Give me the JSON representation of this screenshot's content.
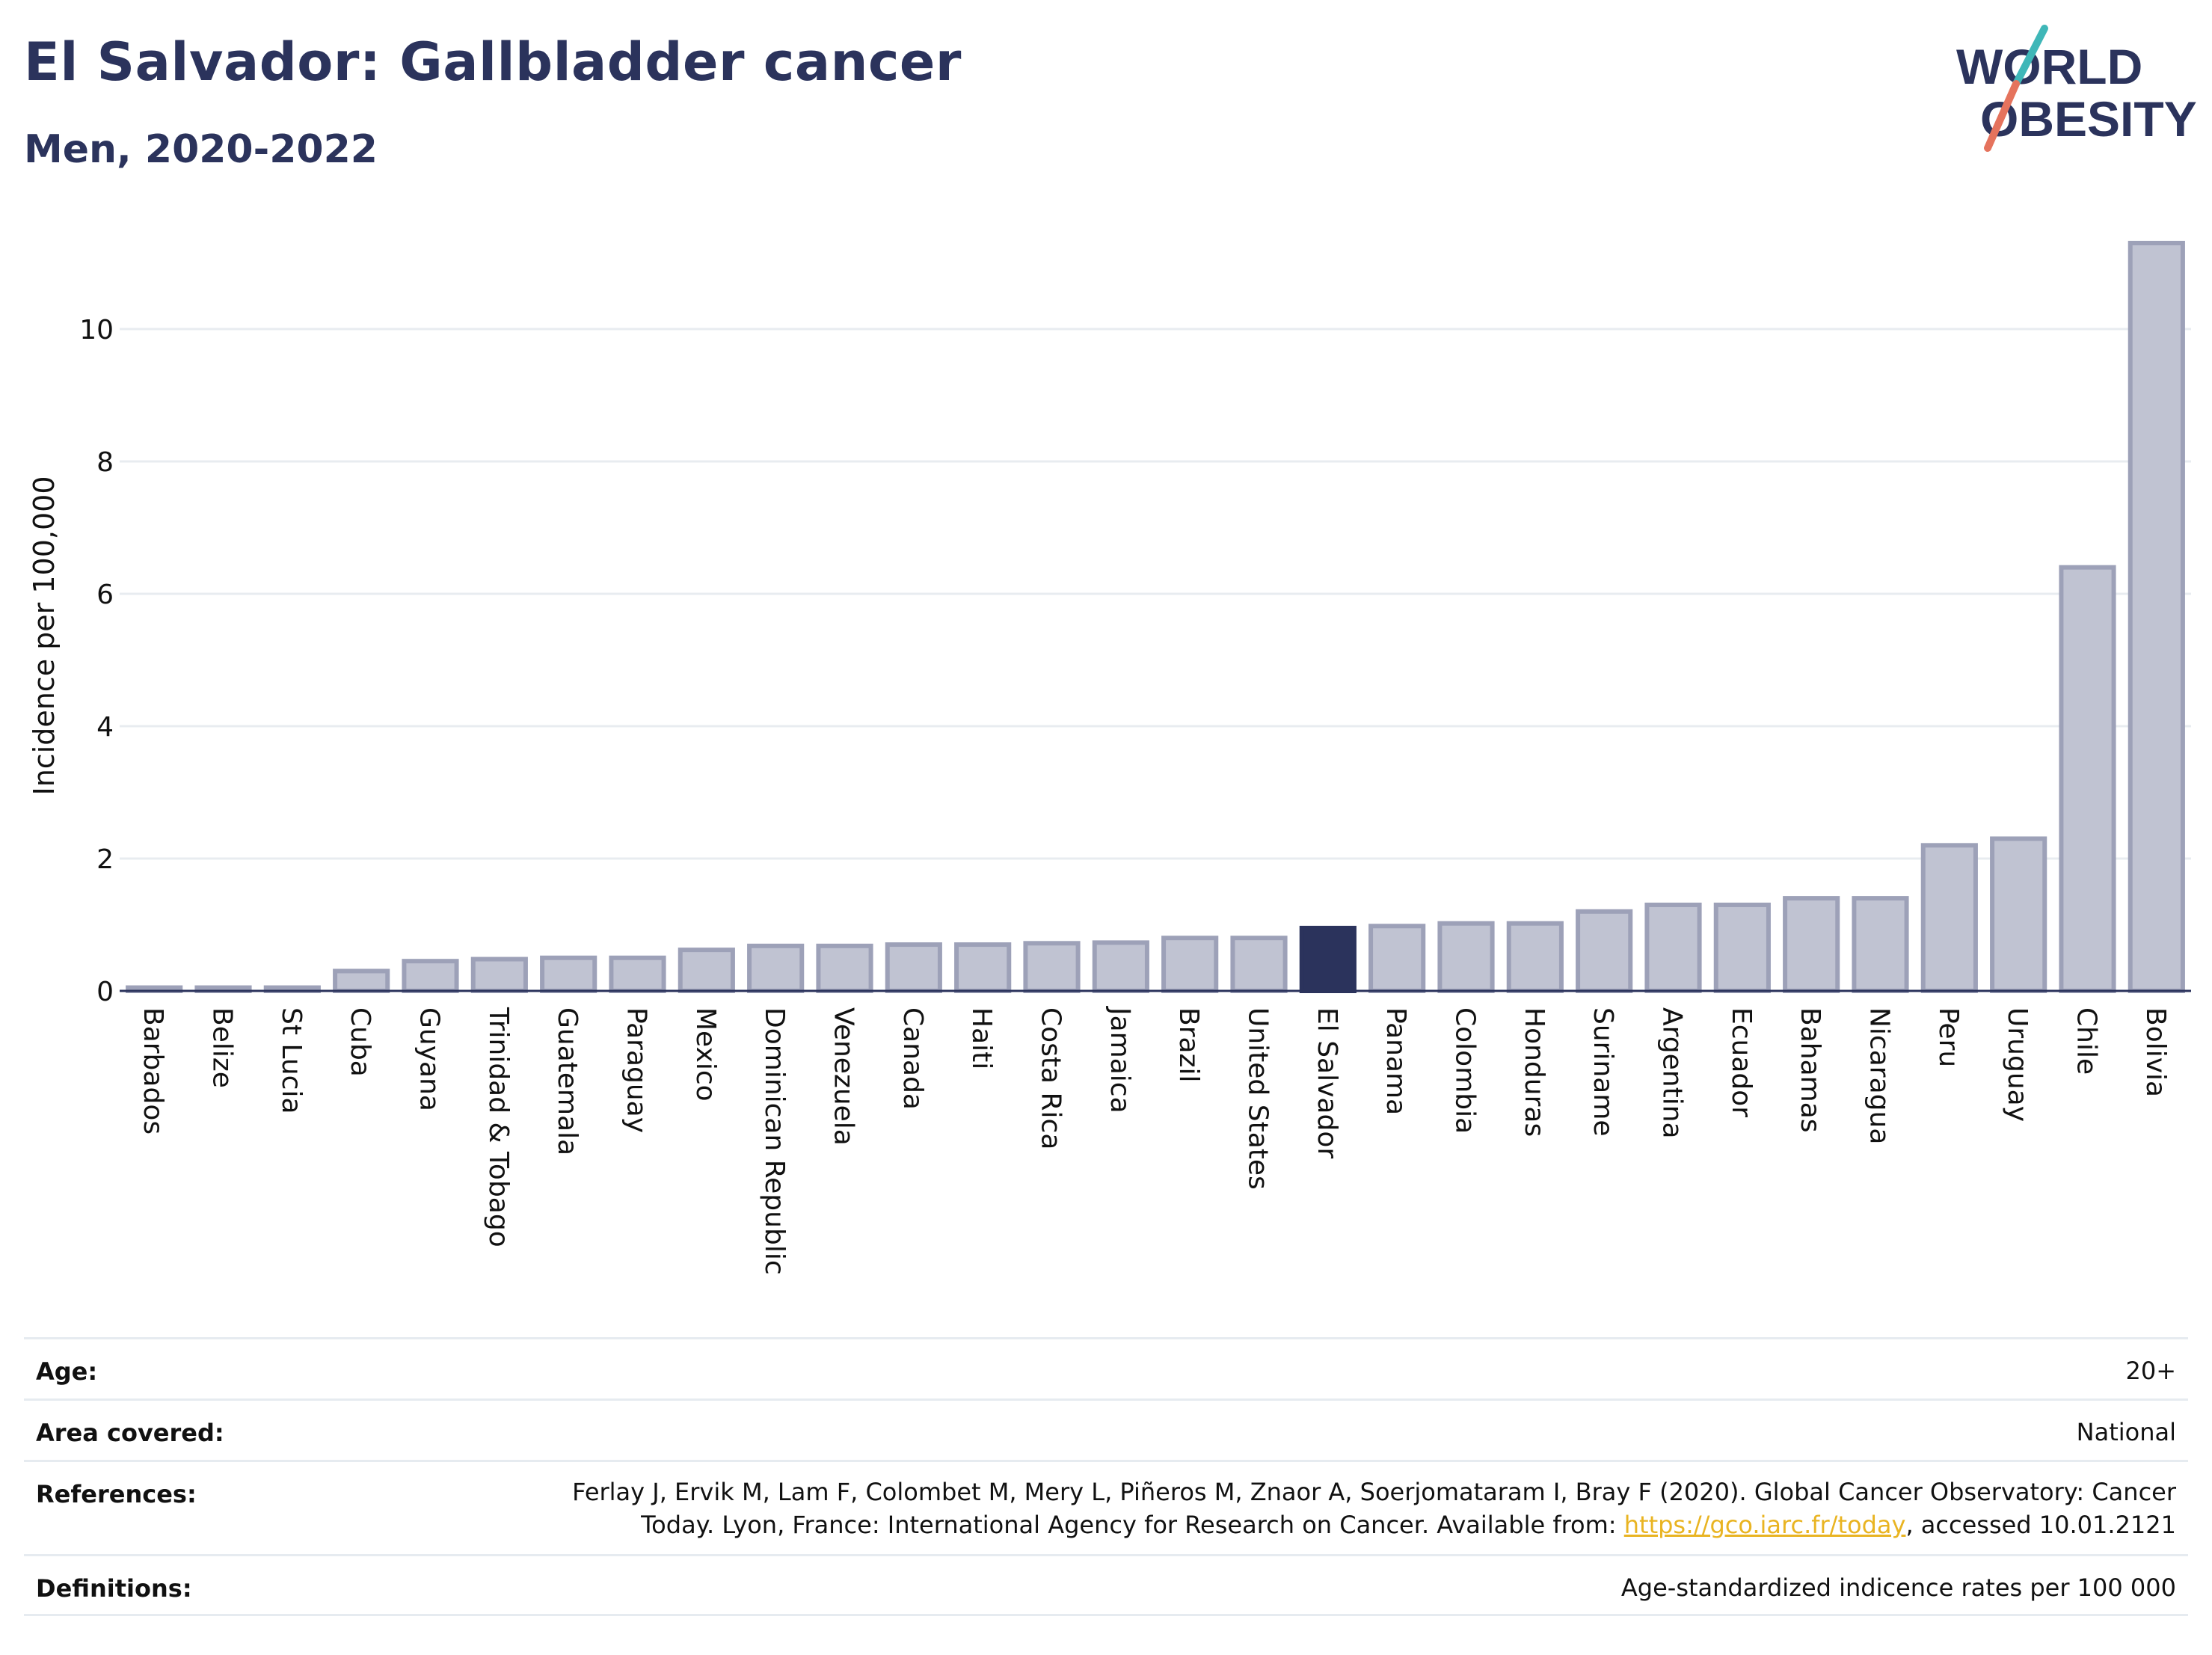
{
  "header": {
    "title": "El Salvador: Gallbladder cancer",
    "subtitle": "Men, 2020-2022"
  },
  "logo": {
    "line1": "WORLD",
    "line2": "OBESITY"
  },
  "colors": {
    "highlight": "#2b335c",
    "bar": "#c0c3d2",
    "bar_edge": "#9da1b8",
    "accent_teal": "#3fb7b8",
    "accent_coral": "#e5735d",
    "link": "#e9b422"
  },
  "chart_data": {
    "type": "bar",
    "title": "El Salvador: Gallbladder cancer",
    "subtitle": "Men, 2020-2022",
    "xlabel": "",
    "ylabel": "Incidence per 100,000",
    "ylim": [
      0,
      11.3
    ],
    "yticks": [
      0,
      2,
      4,
      6,
      8,
      10
    ],
    "grid": true,
    "highlight": "El Salvador",
    "categories": [
      "Barbados",
      "Belize",
      "St Lucia",
      "Cuba",
      "Guyana",
      "Trinidad & Tobago",
      "Guatemala",
      "Paraguay",
      "Mexico",
      "Dominican Republic",
      "Venezuela",
      "Canada",
      "Haiti",
      "Costa Rica",
      "Jamaica",
      "Brazil",
      "United States",
      "El Salvador",
      "Panama",
      "Colombia",
      "Honduras",
      "Suriname",
      "Argentina",
      "Ecuador",
      "Bahamas",
      "Nicaragua",
      "Peru",
      "Uruguay",
      "Chile",
      "Bolivia"
    ],
    "values": [
      0.05,
      0.05,
      0.05,
      0.3,
      0.45,
      0.48,
      0.5,
      0.5,
      0.62,
      0.68,
      0.68,
      0.7,
      0.7,
      0.72,
      0.73,
      0.8,
      0.8,
      0.95,
      0.98,
      1.02,
      1.02,
      1.2,
      1.3,
      1.3,
      1.4,
      1.4,
      2.2,
      2.3,
      6.4,
      11.3
    ]
  },
  "info": {
    "age": {
      "label": "Age:",
      "value": "20+"
    },
    "area": {
      "label": "Area covered:",
      "value": "National"
    },
    "references": {
      "label": "References:",
      "line1": "Ferlay J, Ervik M, Lam F, Colombet M, Mery L, Piñeros M, Znaor A, Soerjomataram I, Bray F (2020). Global Cancer Observatory: Cancer",
      "line2_pre": "Today. Lyon, France: International Agency for Research on Cancer. Available from: ",
      "link": "https://gco.iarc.fr/today",
      "line2_post": ", accessed 10.01.2121"
    },
    "definitions": {
      "label": "Definitions:",
      "value": "Age-standardized indicence rates per 100 000"
    }
  }
}
